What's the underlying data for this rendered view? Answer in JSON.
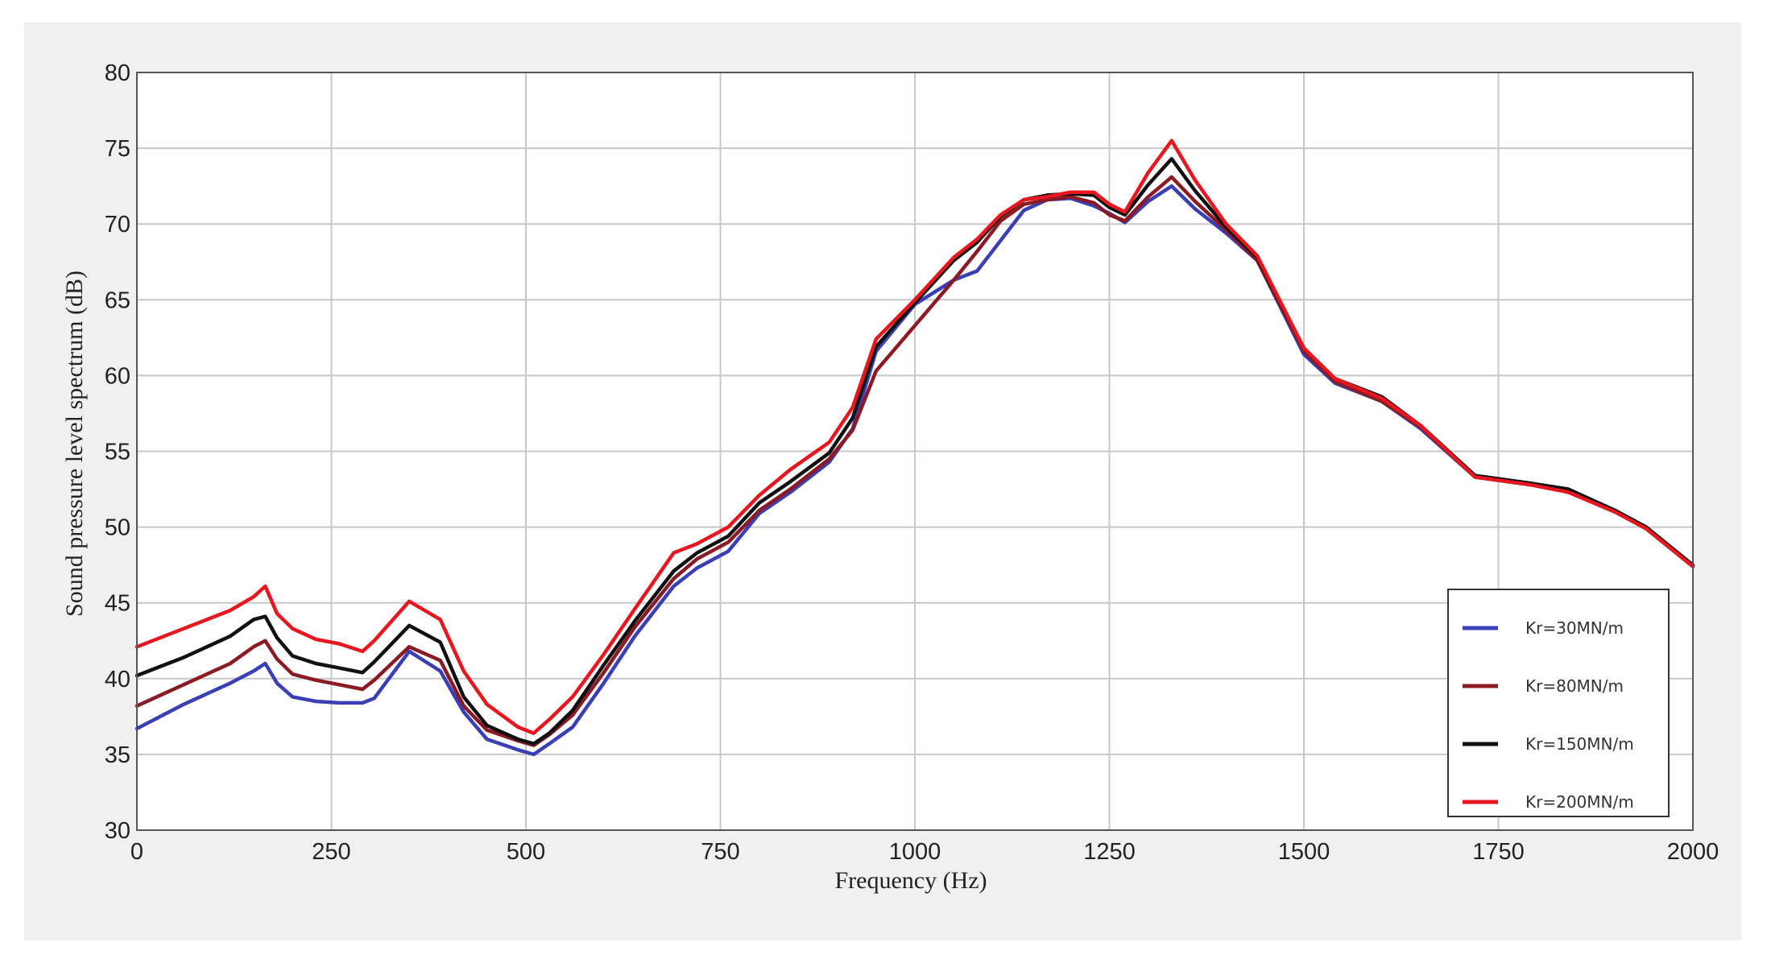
{
  "chart_data": {
    "type": "line",
    "title": "",
    "xlabel": "Frequency (Hz)",
    "ylabel": "Sound pressure level spectrum (dB)",
    "xlim": [
      0,
      2000
    ],
    "ylim": [
      30,
      80
    ],
    "xticks": [
      "0",
      "250",
      "500",
      "750",
      "1000",
      "1250",
      "1500",
      "1750",
      "2000"
    ],
    "yticks": [
      "30",
      "35",
      "40",
      "45",
      "50",
      "55",
      "60",
      "65",
      "70",
      "75",
      "80"
    ],
    "grid": true,
    "legend_position": "bottom-right",
    "series": [
      {
        "name": "Kr=30MN/m",
        "color": "#3a3fb5",
        "x": [
          0,
          60,
          120,
          150,
          165,
          180,
          200,
          230,
          260,
          290,
          305,
          350,
          390,
          420,
          450,
          490,
          510,
          530,
          560,
          600,
          640,
          690,
          720,
          760,
          800,
          840,
          890,
          920,
          950,
          1000,
          1050,
          1080,
          1110,
          1140,
          1170,
          1200,
          1230,
          1250,
          1270,
          1300,
          1330,
          1360,
          1400,
          1440,
          1500,
          1540,
          1600,
          1650,
          1720,
          1790,
          1840,
          1900,
          1940,
          2000
        ],
        "y": [
          36.7,
          38.3,
          39.7,
          40.5,
          41.0,
          39.7,
          38.8,
          38.5,
          38.4,
          38.4,
          38.7,
          41.8,
          40.5,
          37.8,
          36.0,
          35.3,
          35.0,
          35.7,
          36.8,
          39.7,
          42.8,
          46.1,
          47.3,
          48.4,
          50.9,
          52.3,
          54.3,
          56.5,
          61.6,
          64.7,
          66.3,
          66.9,
          68.9,
          70.9,
          71.6,
          71.7,
          71.2,
          70.7,
          70.1,
          71.5,
          72.5,
          71.0,
          69.4,
          67.6,
          61.4,
          59.5,
          58.3,
          56.5,
          53.3,
          52.8,
          52.4,
          51.0,
          49.9,
          47.4
        ]
      },
      {
        "name": "Kr=80MN/m",
        "color": "#8b1a24",
        "x": [
          0,
          60,
          120,
          150,
          165,
          180,
          200,
          230,
          260,
          290,
          305,
          350,
          390,
          420,
          450,
          490,
          510,
          530,
          560,
          600,
          640,
          690,
          720,
          760,
          800,
          840,
          890,
          920,
          950,
          1000,
          1050,
          1080,
          1110,
          1140,
          1170,
          1200,
          1230,
          1250,
          1270,
          1300,
          1330,
          1360,
          1400,
          1440,
          1500,
          1540,
          1600,
          1650,
          1720,
          1790,
          1840,
          1900,
          1940,
          2000
        ],
        "y": [
          38.2,
          39.6,
          41.0,
          42.1,
          42.5,
          41.3,
          40.3,
          39.9,
          39.6,
          39.3,
          39.9,
          42.1,
          41.2,
          38.2,
          36.6,
          35.9,
          35.6,
          36.3,
          37.6,
          40.4,
          43.4,
          46.6,
          47.9,
          49.0,
          51.1,
          52.5,
          54.5,
          56.4,
          60.3,
          63.3,
          66.3,
          68.2,
          70.2,
          71.3,
          71.6,
          71.8,
          71.4,
          70.6,
          70.2,
          71.8,
          73.1,
          71.5,
          69.6,
          67.6,
          61.6,
          59.6,
          58.3,
          56.6,
          53.3,
          52.9,
          52.3,
          51.0,
          49.9,
          47.4
        ]
      },
      {
        "name": "Kr=150MN/m",
        "color": "#111111",
        "x": [
          0,
          60,
          120,
          150,
          165,
          180,
          200,
          230,
          260,
          290,
          305,
          350,
          390,
          420,
          450,
          490,
          510,
          530,
          560,
          600,
          640,
          690,
          720,
          760,
          800,
          840,
          890,
          920,
          950,
          1000,
          1050,
          1080,
          1110,
          1140,
          1170,
          1200,
          1230,
          1250,
          1270,
          1300,
          1330,
          1360,
          1400,
          1440,
          1500,
          1540,
          1600,
          1650,
          1720,
          1790,
          1840,
          1900,
          1940,
          2000
        ],
        "y": [
          40.2,
          41.4,
          42.8,
          43.9,
          44.1,
          42.7,
          41.5,
          41.0,
          40.7,
          40.4,
          41.1,
          43.5,
          42.4,
          38.8,
          36.9,
          36.0,
          35.7,
          36.4,
          37.9,
          40.9,
          43.8,
          47.1,
          48.3,
          49.4,
          51.6,
          53.0,
          54.9,
          57.2,
          61.9,
          64.8,
          67.6,
          68.8,
          70.5,
          71.6,
          71.9,
          72.0,
          71.9,
          71.1,
          70.6,
          72.6,
          74.3,
          72.2,
          69.8,
          67.8,
          61.8,
          59.8,
          58.6,
          56.7,
          53.4,
          52.9,
          52.5,
          51.1,
          50.0,
          47.5
        ]
      },
      {
        "name": "Kr=200MN/m",
        "color": "#e8161e",
        "x": [
          0,
          60,
          120,
          150,
          165,
          180,
          200,
          230,
          260,
          290,
          305,
          350,
          390,
          420,
          450,
          490,
          510,
          530,
          560,
          600,
          640,
          690,
          720,
          760,
          800,
          840,
          890,
          920,
          950,
          1000,
          1050,
          1080,
          1110,
          1140,
          1170,
          1200,
          1230,
          1250,
          1270,
          1300,
          1330,
          1360,
          1400,
          1440,
          1500,
          1540,
          1600,
          1650,
          1720,
          1790,
          1840,
          1900,
          1940,
          2000
        ],
        "y": [
          42.1,
          43.3,
          44.5,
          45.4,
          46.1,
          44.3,
          43.3,
          42.6,
          42.3,
          41.8,
          42.5,
          45.1,
          43.9,
          40.5,
          38.3,
          36.8,
          36.4,
          37.3,
          38.8,
          41.6,
          44.6,
          48.3,
          48.9,
          50.0,
          52.1,
          53.8,
          55.6,
          57.9,
          62.4,
          65.0,
          67.8,
          69.0,
          70.6,
          71.6,
          71.8,
          72.1,
          72.1,
          71.3,
          70.8,
          73.4,
          75.5,
          72.9,
          70.0,
          67.9,
          61.8,
          59.8,
          58.5,
          56.7,
          53.3,
          52.8,
          52.3,
          51.0,
          49.9,
          47.4
        ]
      }
    ]
  }
}
